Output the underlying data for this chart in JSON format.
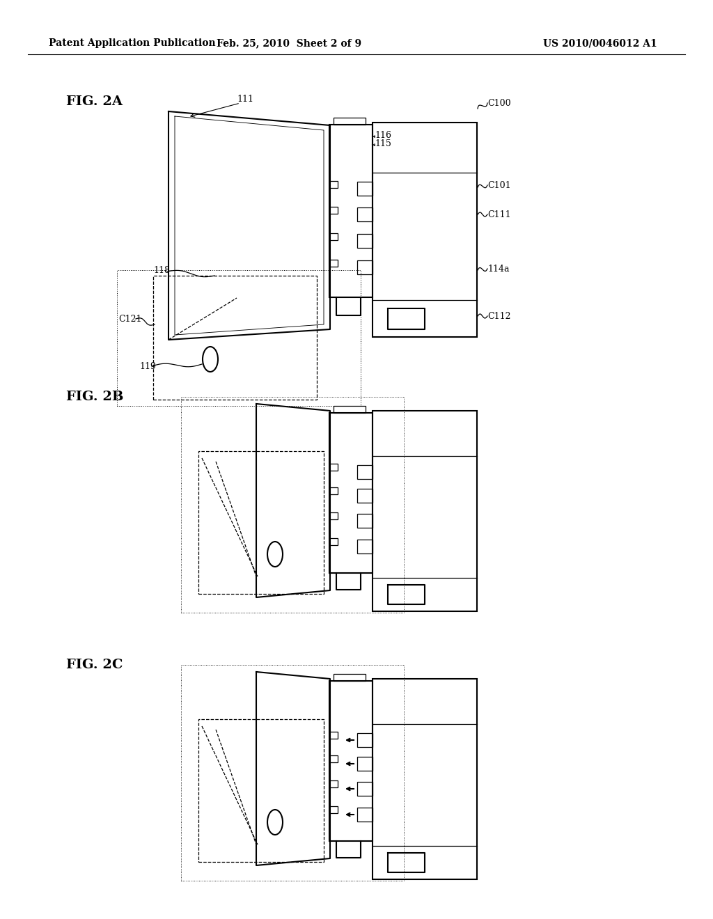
{
  "bg_color": "#ffffff",
  "line_color": "#000000",
  "header_left": "Patent Application Publication",
  "header_mid": "Feb. 25, 2010  Sheet 2 of 9",
  "header_right": "US 2010/0046012 A1",
  "fig_labels": [
    "FIG. 2A",
    "FIG. 2B",
    "FIG. 2C"
  ],
  "lw_main": 1.5,
  "lw_thin": 0.9,
  "font_size_label": 14,
  "font_size_ref": 9,
  "font_size_header": 10
}
